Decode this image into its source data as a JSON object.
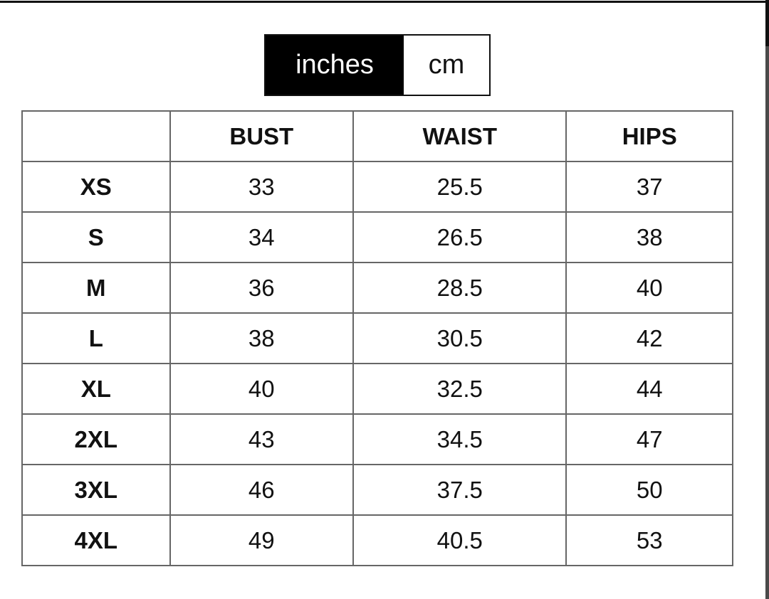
{
  "unit_toggle": {
    "options": [
      "inches",
      "cm"
    ],
    "selected": "inches"
  },
  "table": {
    "headers": [
      "",
      "BUST",
      "WAIST",
      "HIPS"
    ],
    "rows": [
      [
        "XS",
        "33",
        "25.5",
        "37"
      ],
      [
        "S",
        "34",
        "26.5",
        "38"
      ],
      [
        "M",
        "36",
        "28.5",
        "40"
      ],
      [
        "L",
        "38",
        "30.5",
        "42"
      ],
      [
        "XL",
        "40",
        "32.5",
        "44"
      ],
      [
        "2XL",
        "43",
        "34.5",
        "47"
      ],
      [
        "3XL",
        "46",
        "37.5",
        "50"
      ],
      [
        "4XL",
        "49",
        "40.5",
        "53"
      ]
    ]
  }
}
